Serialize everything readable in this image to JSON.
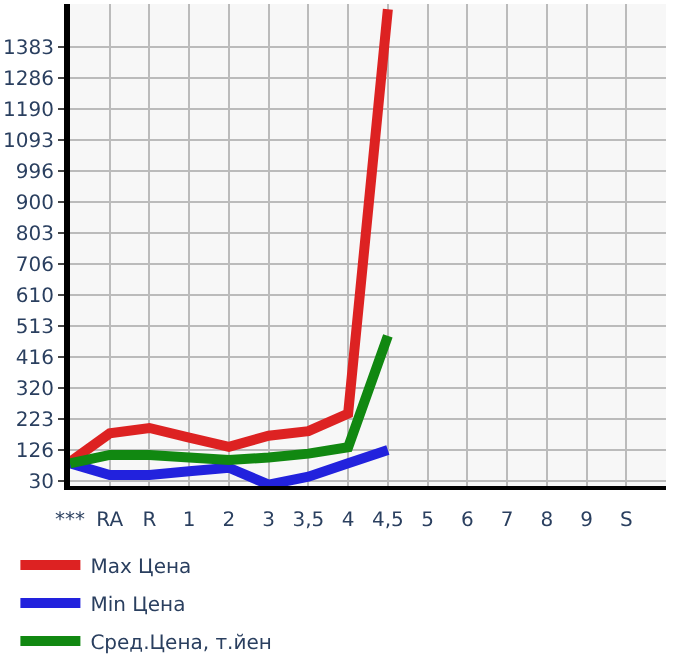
{
  "chart_data": {
    "type": "line",
    "categories": [
      "***",
      "RA",
      "R",
      "1",
      "2",
      "3",
      "3,5",
      "4",
      "4,5",
      "5",
      "6",
      "7",
      "8",
      "9",
      "S"
    ],
    "series": [
      {
        "name": "Max Цена",
        "color": "#dd2222",
        "values": [
          88,
          177,
          194,
          164,
          135,
          170,
          184,
          239,
          1500,
          null,
          null,
          null,
          null,
          null,
          null
        ]
      },
      {
        "name": "Min Цена",
        "color": "#2222dd",
        "values": [
          84,
          47,
          47,
          59,
          70,
          17,
          42,
          84,
          125,
          null,
          null,
          null,
          null,
          null,
          null
        ]
      },
      {
        "name": "Сред.Цена, т.йен",
        "color": "#118811",
        "values": [
          84,
          110,
          110,
          102,
          94,
          102,
          114,
          134,
          481,
          null,
          null,
          null,
          null,
          null,
          null
        ]
      }
    ],
    "ylim": [
      13,
      1516
    ],
    "yticks": [
      30,
      126,
      223,
      320,
      416,
      513,
      610,
      706,
      803,
      900,
      996,
      1093,
      1190,
      1286,
      1383
    ],
    "grid": true,
    "legend": "bottom",
    "marker": "none",
    "line_style": "solid"
  }
}
